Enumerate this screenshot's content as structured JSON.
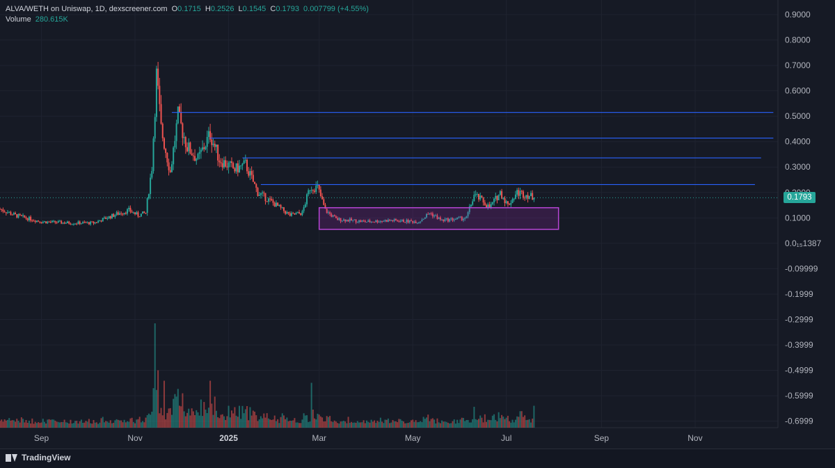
{
  "legend": {
    "title": "ALVA/WETH on Uniswap, 1D, dexscreener.com",
    "o_label": "O",
    "o": "0.1715",
    "h_label": "H",
    "h": "0.2526",
    "l_label": "L",
    "l": "0.1545",
    "c_label": "C",
    "c": "0.1793",
    "change": "0.007799 (+4.55%)",
    "volume_label": "Volume",
    "volume": "280.615K"
  },
  "last_price_label": "0.1793",
  "footer": {
    "brand": "TradingView",
    "logo_icon": "tradingview-logo-icon"
  },
  "colors": {
    "up": "#26a69a",
    "down": "#ef5350",
    "line": "#2962ff",
    "box": "#9c27b0",
    "background": "#161a25"
  },
  "chart_data": {
    "type": "candlestick",
    "symbol": "ALVA/WETH",
    "interval": "1D",
    "ylim": [
      -0.75,
      0.92
    ],
    "y_tick_labels": [
      "0.9000",
      "0.8000",
      "0.7000",
      "0.6000",
      "0.5000",
      "0.4000",
      "0.3000",
      "0.2000",
      "0.1000",
      "0.0₁₅1387",
      "-0.09999",
      "-0.1999",
      "-0.2999",
      "-0.3999",
      "-0.4999",
      "-0.5999",
      "-0.6999"
    ],
    "y_tick_values": [
      0.9,
      0.8,
      0.7,
      0.6,
      0.5,
      0.4,
      0.3,
      0.2,
      0.1,
      0.0,
      -0.1,
      -0.2,
      -0.3,
      -0.4,
      -0.5,
      -0.6,
      -0.7
    ],
    "x_tick_labels": [
      "Sep",
      "Nov",
      "2025",
      "Mar",
      "May",
      "Jul",
      "Sep",
      "Nov"
    ],
    "x_tick_dates": [
      "2024-09-01",
      "2024-11-01",
      "2025-01-01",
      "2025-03-01",
      "2025-05-01",
      "2025-07-01",
      "2025-09-01",
      "2025-11-01"
    ],
    "x_range": [
      "2024-08-05",
      "2025-12-25"
    ],
    "price_path": [
      [
        "2024-08-05",
        0.135
      ],
      [
        "2024-08-15",
        0.11
      ],
      [
        "2024-09-01",
        0.085
      ],
      [
        "2024-09-20",
        0.08
      ],
      [
        "2024-10-05",
        0.08
      ],
      [
        "2024-10-20",
        0.115
      ],
      [
        "2024-10-28",
        0.13
      ],
      [
        "2024-11-03",
        0.11
      ],
      [
        "2024-11-08",
        0.12
      ],
      [
        "2024-11-12",
        0.3
      ],
      [
        "2024-11-15",
        0.66
      ],
      [
        "2024-11-18",
        0.45
      ],
      [
        "2024-11-24",
        0.28
      ],
      [
        "2024-11-29",
        0.5
      ],
      [
        "2024-12-05",
        0.38
      ],
      [
        "2024-12-12",
        0.33
      ],
      [
        "2024-12-20",
        0.43
      ],
      [
        "2024-12-26",
        0.33
      ],
      [
        "2025-01-05",
        0.29
      ],
      [
        "2025-01-12",
        0.31
      ],
      [
        "2025-01-20",
        0.2
      ],
      [
        "2025-02-01",
        0.15
      ],
      [
        "2025-02-10",
        0.11
      ],
      [
        "2025-02-18",
        0.12
      ],
      [
        "2025-02-23",
        0.22
      ],
      [
        "2025-02-28",
        0.22
      ],
      [
        "2025-03-05",
        0.13
      ],
      [
        "2025-03-12",
        0.095
      ],
      [
        "2025-04-01",
        0.085
      ],
      [
        "2025-04-15",
        0.09
      ],
      [
        "2025-05-05",
        0.085
      ],
      [
        "2025-05-12",
        0.12
      ],
      [
        "2025-05-20",
        0.09
      ],
      [
        "2025-06-05",
        0.1
      ],
      [
        "2025-06-10",
        0.19
      ],
      [
        "2025-06-15",
        0.17
      ],
      [
        "2025-06-20",
        0.14
      ],
      [
        "2025-06-27",
        0.2
      ],
      [
        "2025-07-02",
        0.15
      ],
      [
        "2025-07-08",
        0.2
      ],
      [
        "2025-07-15",
        0.19
      ],
      [
        "2025-07-19",
        0.1793
      ]
    ],
    "volume_spikes": [
      [
        "2024-11-14",
        1.0
      ],
      [
        "2024-11-16",
        0.55
      ],
      [
        "2024-11-20",
        0.45
      ],
      [
        "2024-12-20",
        0.45
      ],
      [
        "2025-02-24",
        0.43
      ],
      [
        "2025-06-10",
        0.2
      ],
      [
        "2025-07-19",
        0.21
      ]
    ],
    "last_price": 0.1793,
    "horizontal_lines": [
      {
        "price": 0.515,
        "from": "2024-11-25",
        "to": "2025-12-22"
      },
      {
        "price": 0.414,
        "from": "2024-12-20",
        "to": "2025-12-22"
      },
      {
        "price": 0.336,
        "from": "2025-01-10",
        "to": "2025-12-14"
      },
      {
        "price": 0.231,
        "from": "2025-01-22",
        "to": "2025-12-10"
      }
    ],
    "rectangle": {
      "from": "2025-03-01",
      "to": "2025-08-04",
      "top": 0.14,
      "bottom": 0.055
    },
    "grid": true
  }
}
